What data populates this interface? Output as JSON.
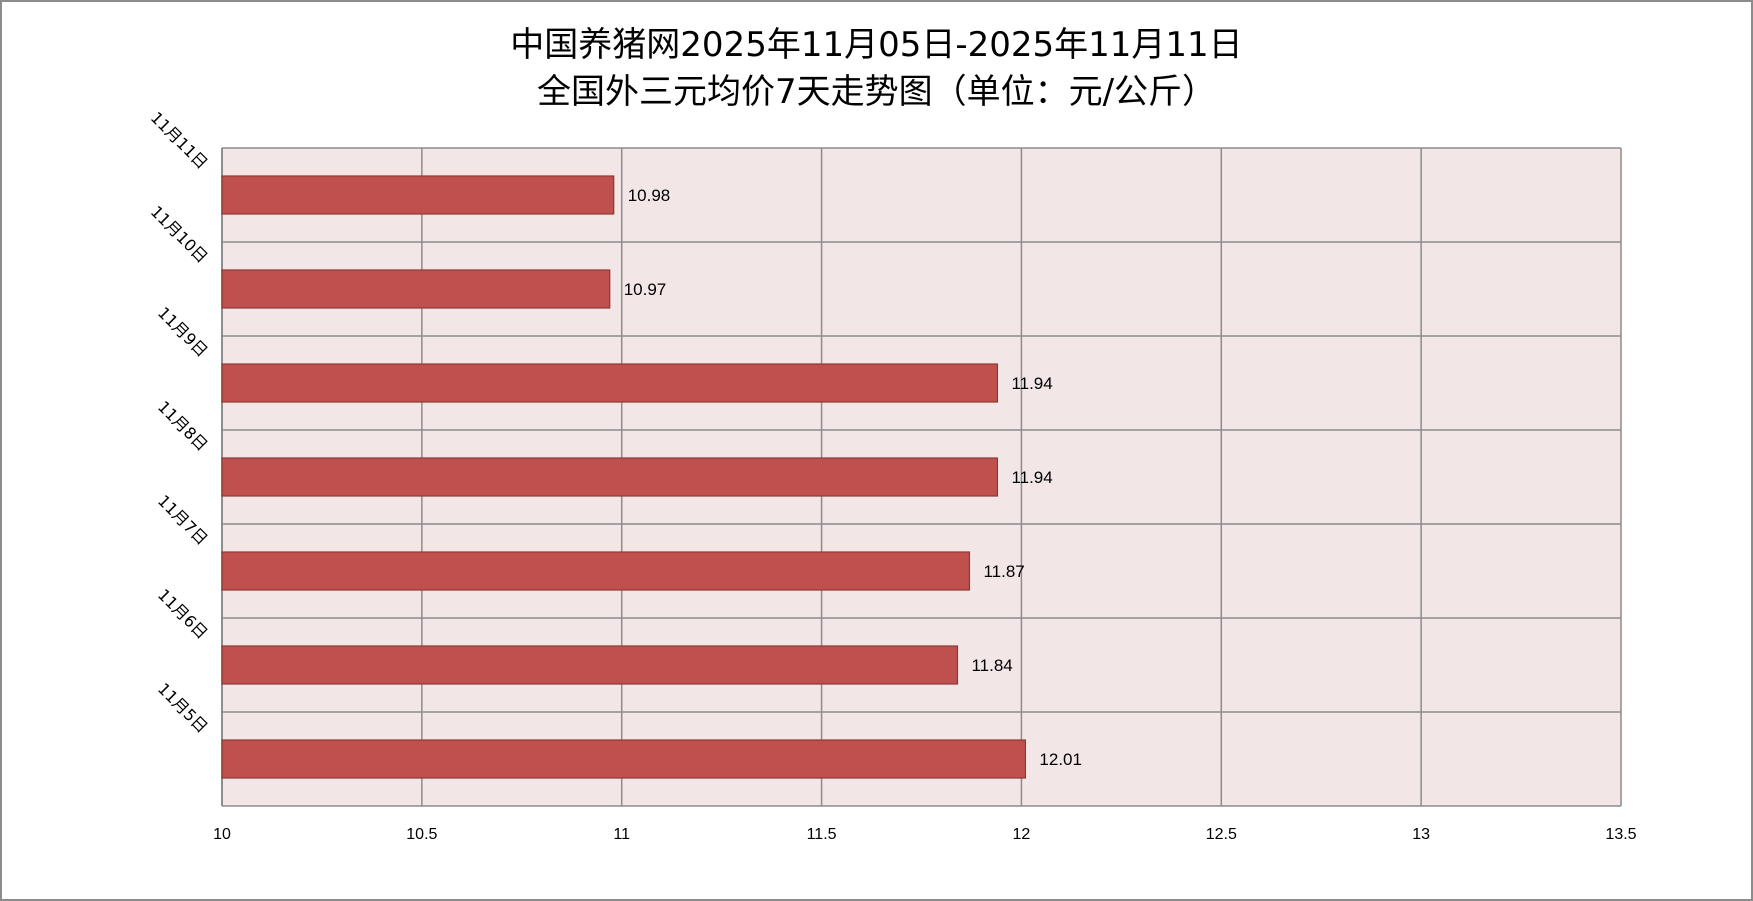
{
  "title_line1": "中国养猪网2025年11月05日-2025年11月11日",
  "title_line2": "全国外三元均价7天走势图（单位：元/公斤）",
  "colors": {
    "bar_fill": "#C0504D",
    "bar_stroke": "#8C3836",
    "plot_bg": "#F2E6E6",
    "grid": "#8C8C8C"
  },
  "chart_data": {
    "type": "bar",
    "orientation": "horizontal",
    "title": "中国养猪网2025年11月05日-2025年11月11日 全国外三元均价7天走势图（单位：元/公斤）",
    "categories": [
      "11月11日",
      "11月10日",
      "11月9日",
      "11月8日",
      "11月7日",
      "11月6日",
      "11月5日"
    ],
    "values": [
      10.98,
      10.97,
      11.94,
      11.94,
      11.87,
      11.84,
      12.01
    ],
    "value_labels": [
      "10.98",
      "10.97",
      "11.94",
      "11.94",
      "11.87",
      "11.84",
      "12.01"
    ],
    "xlim": [
      10,
      13.5
    ],
    "xticks": [
      "10",
      "10.5",
      "11",
      "11.5",
      "12",
      "12.5",
      "13",
      "13.5"
    ],
    "xtick_values": [
      10,
      10.5,
      11,
      11.5,
      12,
      12.5,
      13,
      13.5
    ],
    "grid": true,
    "legend": "none"
  }
}
